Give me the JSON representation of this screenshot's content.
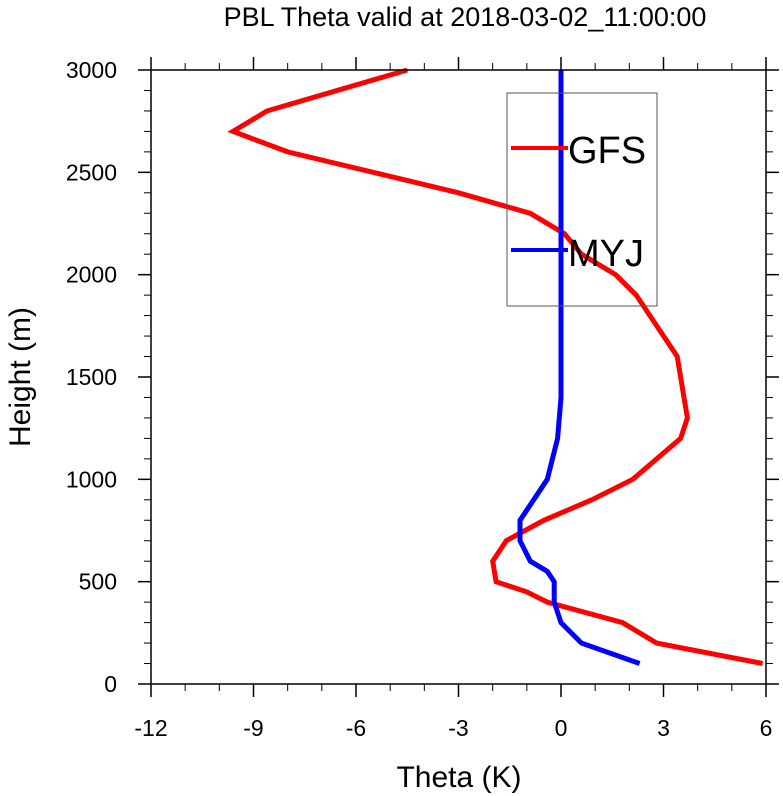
{
  "chart_data": {
    "type": "line",
    "title": "PBL Theta valid at 2018-03-02_11:00:00",
    "xlabel": "Theta (K)",
    "ylabel": "Height (m)",
    "xlim": [
      -12,
      6
    ],
    "ylim": [
      0,
      3000
    ],
    "xticks": [
      -12,
      -9,
      -6,
      -3,
      0,
      3,
      6
    ],
    "yticks": [
      0,
      500,
      1000,
      1500,
      2000,
      2500,
      3000
    ],
    "grid": false,
    "legend_position": "top-right",
    "series": [
      {
        "name": "GFS",
        "color": "#ff0000",
        "x": [
          5.9,
          2.8,
          1.8,
          -0.4,
          -1.0,
          -1.9,
          -2.0,
          -1.6,
          -0.5,
          0.9,
          2.1,
          3.5,
          3.7,
          3.6,
          3.4,
          2.2,
          1.6,
          0.6,
          0.1,
          -0.9,
          -3.0,
          -8.0,
          -9.6,
          -8.6,
          -4.5
        ],
        "y": [
          100,
          200,
          300,
          400,
          450,
          500,
          600,
          700,
          800,
          900,
          1000,
          1200,
          1300,
          1400,
          1600,
          1900,
          2000,
          2100,
          2200,
          2300,
          2400,
          2600,
          2700,
          2800,
          3000
        ]
      },
      {
        "name": "MYJ",
        "color": "#0000ff",
        "x": [
          2.3,
          0.6,
          0.0,
          -0.2,
          -0.2,
          -0.4,
          -0.9,
          -1.2,
          -1.2,
          -0.8,
          -0.4,
          -0.1,
          0.0,
          0.0,
          0.0,
          0.0,
          0.0
        ],
        "y": [
          100,
          200,
          300,
          400,
          500,
          550,
          600,
          700,
          800,
          900,
          1000,
          1200,
          1400,
          1600,
          2000,
          2500,
          3000
        ]
      }
    ]
  }
}
